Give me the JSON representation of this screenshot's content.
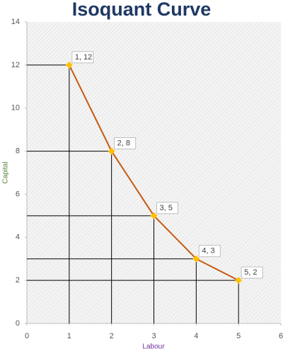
{
  "chart_data": {
    "type": "line",
    "title": "Isoquant Curve",
    "x_label": "Labour",
    "y_label": "Capital",
    "x": [
      1,
      2,
      3,
      4,
      5
    ],
    "series": [
      {
        "color": "#c55a11",
        "marker_color": "#ffc000",
        "values": [
          12,
          8,
          5,
          3,
          2
        ],
        "value_labels": [
          "1, 12",
          "2, 8",
          "3, 5",
          "4, 3",
          "5, 2"
        ]
      }
    ],
    "xlim": [
      0,
      6
    ],
    "xticks": [
      0,
      1,
      2,
      3,
      4,
      5,
      6
    ],
    "ylim": [
      0,
      14
    ],
    "yticks": [
      0,
      2,
      4,
      6,
      8,
      10,
      12,
      14
    ],
    "drop_lines": true
  }
}
